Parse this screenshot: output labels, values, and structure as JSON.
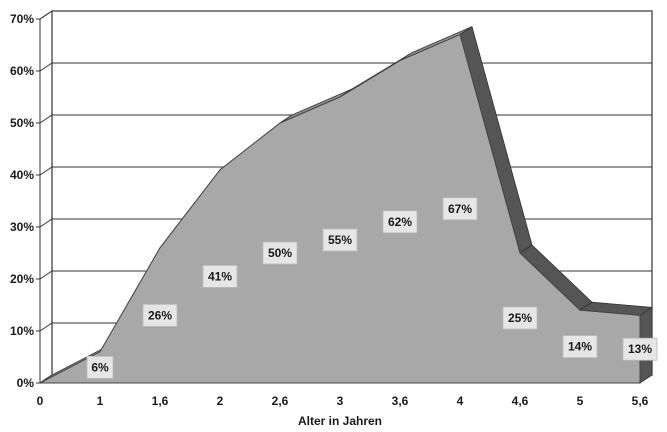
{
  "chart_data": {
    "type": "area",
    "title": "",
    "xlabel": "Alter in Jahren",
    "ylabel": "",
    "x_ticks": [
      "0",
      "1",
      "1,6",
      "2",
      "2,6",
      "3",
      "3,6",
      "4",
      "4,6",
      "5",
      "5,6"
    ],
    "y_ticks": [
      "0%",
      "10%",
      "20%",
      "30%",
      "40%",
      "50%",
      "60%",
      "70%"
    ],
    "ylim": [
      0,
      70
    ],
    "grid": true,
    "three_d": true,
    "series": [
      {
        "values": [
          0,
          6,
          26,
          41,
          50,
          55,
          62,
          67,
          25,
          14,
          13
        ],
        "labels": [
          "",
          "6%",
          "26%",
          "41%",
          "50%",
          "55%",
          "62%",
          "67%",
          "25%",
          "14%",
          "13%"
        ]
      }
    ],
    "colors": {
      "area": "#a8a8a8",
      "area_side": "#555555",
      "grid": "#333333",
      "label_box": "#e6e6e6"
    }
  }
}
